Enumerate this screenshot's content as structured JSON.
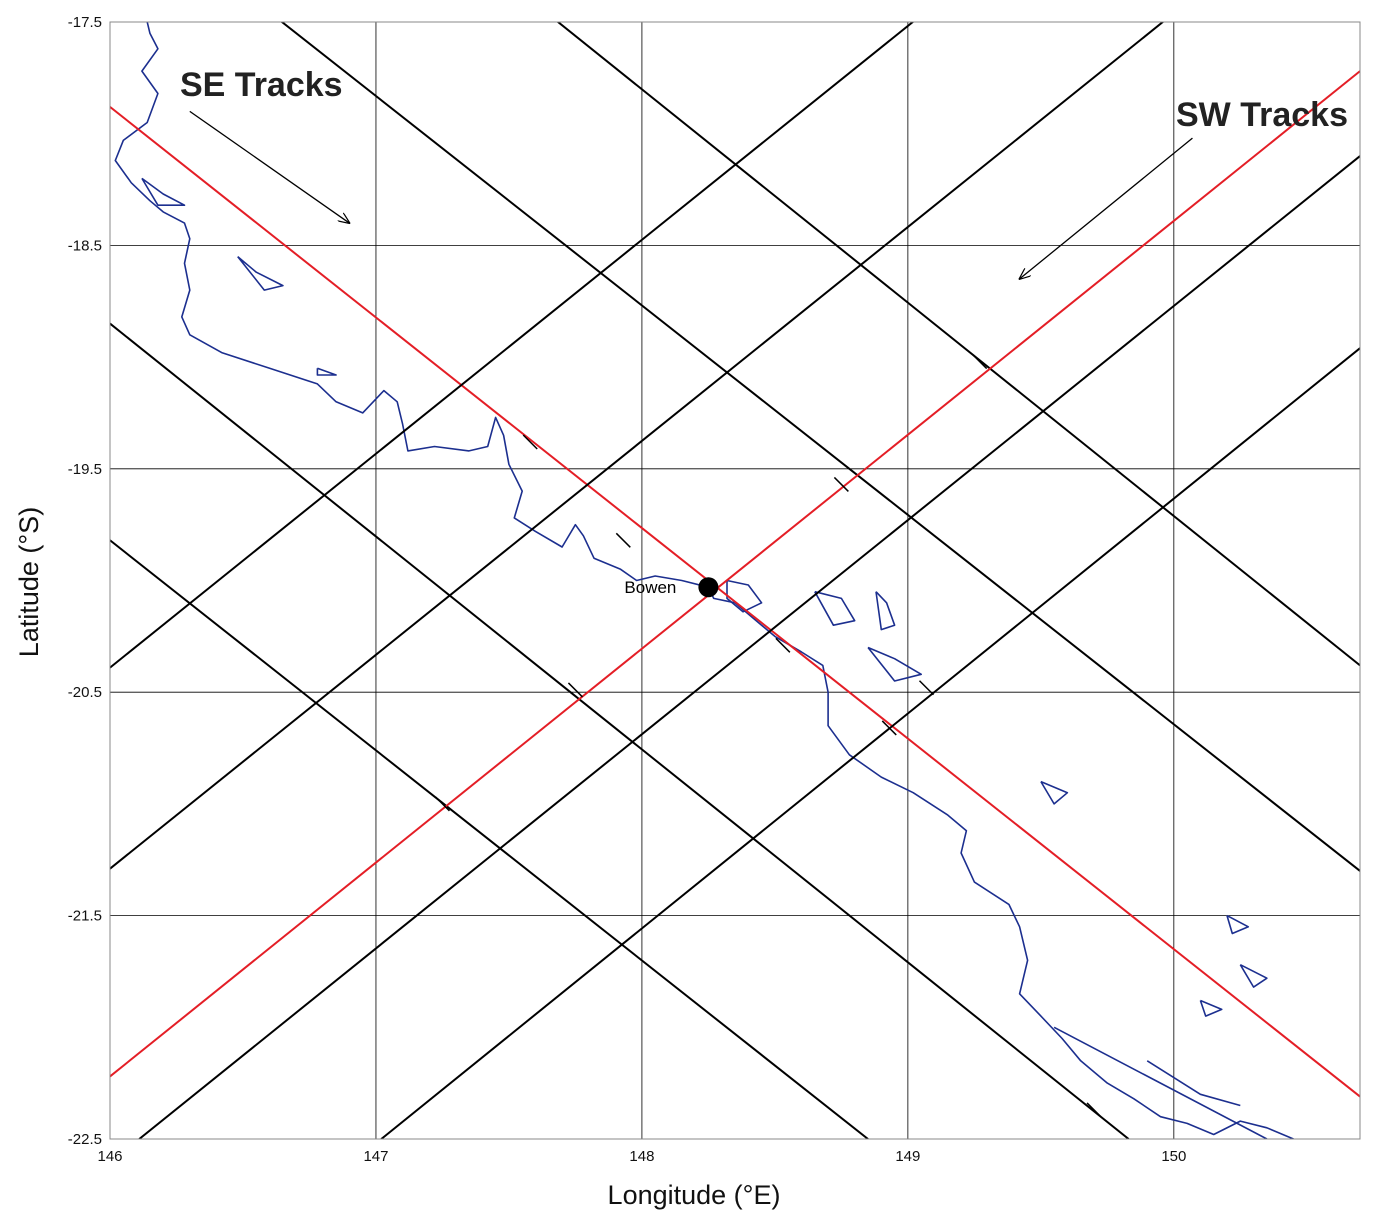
{
  "chart_data": {
    "type": "map",
    "xlabel": "Longitude (°E)",
    "ylabel": "Latitude (°S)",
    "xlim": [
      146,
      150.7
    ],
    "ylim": [
      -22.5,
      -17.5
    ],
    "x_ticks": [
      146,
      147,
      148,
      149,
      150
    ],
    "x_tick_labels": [
      "146",
      "147",
      "148",
      "149",
      "150"
    ],
    "y_ticks": [
      -17.5,
      -18.5,
      -19.5,
      -20.5,
      -21.5,
      -22.5
    ],
    "y_tick_labels": [
      "-17.5",
      "-18.5",
      "-19.5",
      "-20.5",
      "-21.5",
      "-22.5"
    ],
    "grid": true,
    "colors": {
      "highlight_track": "#e41e26",
      "track": "#000000",
      "coastline": "#1c2f8f",
      "grid": "#000000"
    },
    "annotations": {
      "se_tracks": {
        "label": "SE Tracks",
        "arrow_from": [
          146.3,
          -17.9
        ],
        "arrow_to": [
          146.9,
          -18.4
        ]
      },
      "sw_tracks": {
        "label": "SW Tracks",
        "arrow_from": [
          150.07,
          -18.02
        ],
        "arrow_to": [
          149.42,
          -18.65
        ]
      }
    },
    "place": {
      "label": "Bowen",
      "lon": 148.25,
      "lat": -20.03
    },
    "se_tracks": [
      {
        "start": [
          146.0,
          -17.88
        ],
        "end": [
          150.7,
          -22.31
        ],
        "highlight": true
      },
      {
        "start": [
          146.0,
          -18.85
        ],
        "end": [
          149.83,
          -22.5
        ],
        "highlight": false
      },
      {
        "start": [
          146.0,
          -19.82
        ],
        "end": [
          148.85,
          -22.5
        ],
        "highlight": false
      },
      {
        "start": [
          146.54,
          -17.4
        ],
        "end": [
          150.7,
          -21.3
        ],
        "highlight": false
      },
      {
        "start": [
          147.58,
          -17.4
        ],
        "end": [
          150.7,
          -20.38
        ],
        "highlight": false
      }
    ],
    "sw_tracks": [
      {
        "start": [
          146.0,
          -22.22
        ],
        "end": [
          150.7,
          -17.72
        ],
        "highlight": true
      },
      {
        "start": [
          146.0,
          -21.29
        ],
        "end": [
          150.7,
          -16.79
        ],
        "highlight": false
      },
      {
        "start": [
          146.0,
          -20.39
        ],
        "end": [
          150.7,
          -15.89
        ],
        "highlight": false
      },
      {
        "start": [
          146.11,
          -22.5
        ],
        "end": [
          150.7,
          -18.1
        ],
        "highlight": false
      },
      {
        "start": [
          147.02,
          -22.5
        ],
        "end": [
          150.7,
          -18.96
        ],
        "highlight": false
      }
    ],
    "track_ticks": [
      [
        147.58,
        -19.38
      ],
      [
        149.27,
        -19.02
      ],
      [
        148.75,
        -19.57
      ],
      [
        147.93,
        -19.82
      ],
      [
        148.53,
        -20.29
      ],
      [
        147.75,
        -20.49
      ],
      [
        148.93,
        -20.66
      ],
      [
        147.25,
        -21.0
      ],
      [
        149.07,
        -20.48
      ],
      [
        149.7,
        -22.37
      ]
    ],
    "coastline": [
      [
        [
          146.12,
          -17.4
        ],
        [
          146.15,
          -17.55
        ],
        [
          146.18,
          -17.62
        ],
        [
          146.12,
          -17.72
        ],
        [
          146.18,
          -17.82
        ],
        [
          146.14,
          -17.95
        ],
        [
          146.05,
          -18.03
        ],
        [
          146.02,
          -18.12
        ],
        [
          146.08,
          -18.22
        ],
        [
          146.15,
          -18.3
        ],
        [
          146.2,
          -18.35
        ],
        [
          146.28,
          -18.4
        ],
        [
          146.3,
          -18.47
        ],
        [
          146.28,
          -18.58
        ],
        [
          146.3,
          -18.7
        ],
        [
          146.27,
          -18.82
        ],
        [
          146.3,
          -18.9
        ],
        [
          146.42,
          -18.98
        ],
        [
          146.6,
          -19.05
        ],
        [
          146.78,
          -19.12
        ],
        [
          146.85,
          -19.2
        ],
        [
          146.95,
          -19.25
        ],
        [
          147.03,
          -19.15
        ],
        [
          147.08,
          -19.2
        ],
        [
          147.1,
          -19.3
        ],
        [
          147.12,
          -19.42
        ],
        [
          147.22,
          -19.4
        ],
        [
          147.35,
          -19.42
        ],
        [
          147.42,
          -19.4
        ],
        [
          147.45,
          -19.27
        ],
        [
          147.48,
          -19.35
        ],
        [
          147.5,
          -19.48
        ],
        [
          147.55,
          -19.6
        ],
        [
          147.52,
          -19.72
        ],
        [
          147.6,
          -19.78
        ],
        [
          147.7,
          -19.85
        ],
        [
          147.75,
          -19.75
        ],
        [
          147.78,
          -19.8
        ],
        [
          147.82,
          -19.9
        ],
        [
          147.92,
          -19.95
        ],
        [
          147.98,
          -20.0
        ],
        [
          148.05,
          -19.98
        ],
        [
          148.15,
          -20.0
        ],
        [
          148.25,
          -20.03
        ],
        [
          148.27,
          -20.08
        ],
        [
          148.35,
          -20.1
        ],
        [
          148.42,
          -20.17
        ],
        [
          148.5,
          -20.25
        ],
        [
          148.6,
          -20.32
        ],
        [
          148.68,
          -20.38
        ],
        [
          148.7,
          -20.5
        ],
        [
          148.7,
          -20.65
        ],
        [
          148.78,
          -20.78
        ],
        [
          148.9,
          -20.88
        ],
        [
          149.02,
          -20.95
        ],
        [
          149.15,
          -21.05
        ],
        [
          149.22,
          -21.12
        ],
        [
          149.2,
          -21.22
        ],
        [
          149.25,
          -21.35
        ],
        [
          149.38,
          -21.45
        ],
        [
          149.42,
          -21.55
        ],
        [
          149.45,
          -21.7
        ],
        [
          149.42,
          -21.85
        ],
        [
          149.5,
          -21.95
        ],
        [
          149.58,
          -22.05
        ],
        [
          149.65,
          -22.15
        ],
        [
          149.75,
          -22.25
        ],
        [
          149.85,
          -22.32
        ],
        [
          149.95,
          -22.4
        ],
        [
          150.05,
          -22.43
        ],
        [
          150.15,
          -22.48
        ],
        [
          150.25,
          -22.42
        ],
        [
          150.35,
          -22.45
        ],
        [
          150.45,
          -22.5
        ]
      ],
      [
        [
          146.12,
          -18.2
        ],
        [
          146.2,
          -18.27
        ],
        [
          146.28,
          -18.32
        ],
        [
          146.18,
          -18.32
        ],
        [
          146.12,
          -18.2
        ]
      ],
      [
        [
          146.48,
          -18.55
        ],
        [
          146.55,
          -18.62
        ],
        [
          146.65,
          -18.68
        ],
        [
          146.58,
          -18.7
        ],
        [
          146.48,
          -18.55
        ]
      ],
      [
        [
          146.78,
          -19.05
        ],
        [
          146.85,
          -19.08
        ],
        [
          146.78,
          -19.08
        ],
        [
          146.78,
          -19.05
        ]
      ],
      [
        [
          148.32,
          -20.0
        ],
        [
          148.4,
          -20.02
        ],
        [
          148.45,
          -20.1
        ],
        [
          148.38,
          -20.14
        ],
        [
          148.32,
          -20.08
        ],
        [
          148.32,
          -20.0
        ]
      ],
      [
        [
          148.65,
          -20.05
        ],
        [
          148.75,
          -20.08
        ],
        [
          148.8,
          -20.18
        ],
        [
          148.72,
          -20.2
        ],
        [
          148.65,
          -20.05
        ]
      ],
      [
        [
          148.85,
          -20.3
        ],
        [
          148.95,
          -20.35
        ],
        [
          149.05,
          -20.42
        ],
        [
          148.95,
          -20.45
        ],
        [
          148.85,
          -20.3
        ]
      ],
      [
        [
          148.88,
          -20.05
        ],
        [
          148.92,
          -20.1
        ],
        [
          148.95,
          -20.2
        ],
        [
          148.9,
          -20.22
        ],
        [
          148.88,
          -20.05
        ]
      ],
      [
        [
          149.5,
          -20.9
        ],
        [
          149.6,
          -20.95
        ],
        [
          149.55,
          -21.0
        ],
        [
          149.5,
          -20.9
        ]
      ],
      [
        [
          150.2,
          -21.5
        ],
        [
          150.28,
          -21.55
        ],
        [
          150.22,
          -21.58
        ],
        [
          150.2,
          -21.5
        ]
      ],
      [
        [
          150.25,
          -21.72
        ],
        [
          150.35,
          -21.78
        ],
        [
          150.3,
          -21.82
        ],
        [
          150.25,
          -21.72
        ]
      ],
      [
        [
          150.1,
          -21.88
        ],
        [
          150.18,
          -21.92
        ],
        [
          150.12,
          -21.95
        ],
        [
          150.1,
          -21.88
        ]
      ],
      [
        [
          149.55,
          -22.0
        ],
        [
          150.35,
          -22.5
        ]
      ],
      [
        [
          149.9,
          -22.15
        ],
        [
          150.1,
          -22.3
        ],
        [
          150.25,
          -22.35
        ]
      ]
    ]
  }
}
